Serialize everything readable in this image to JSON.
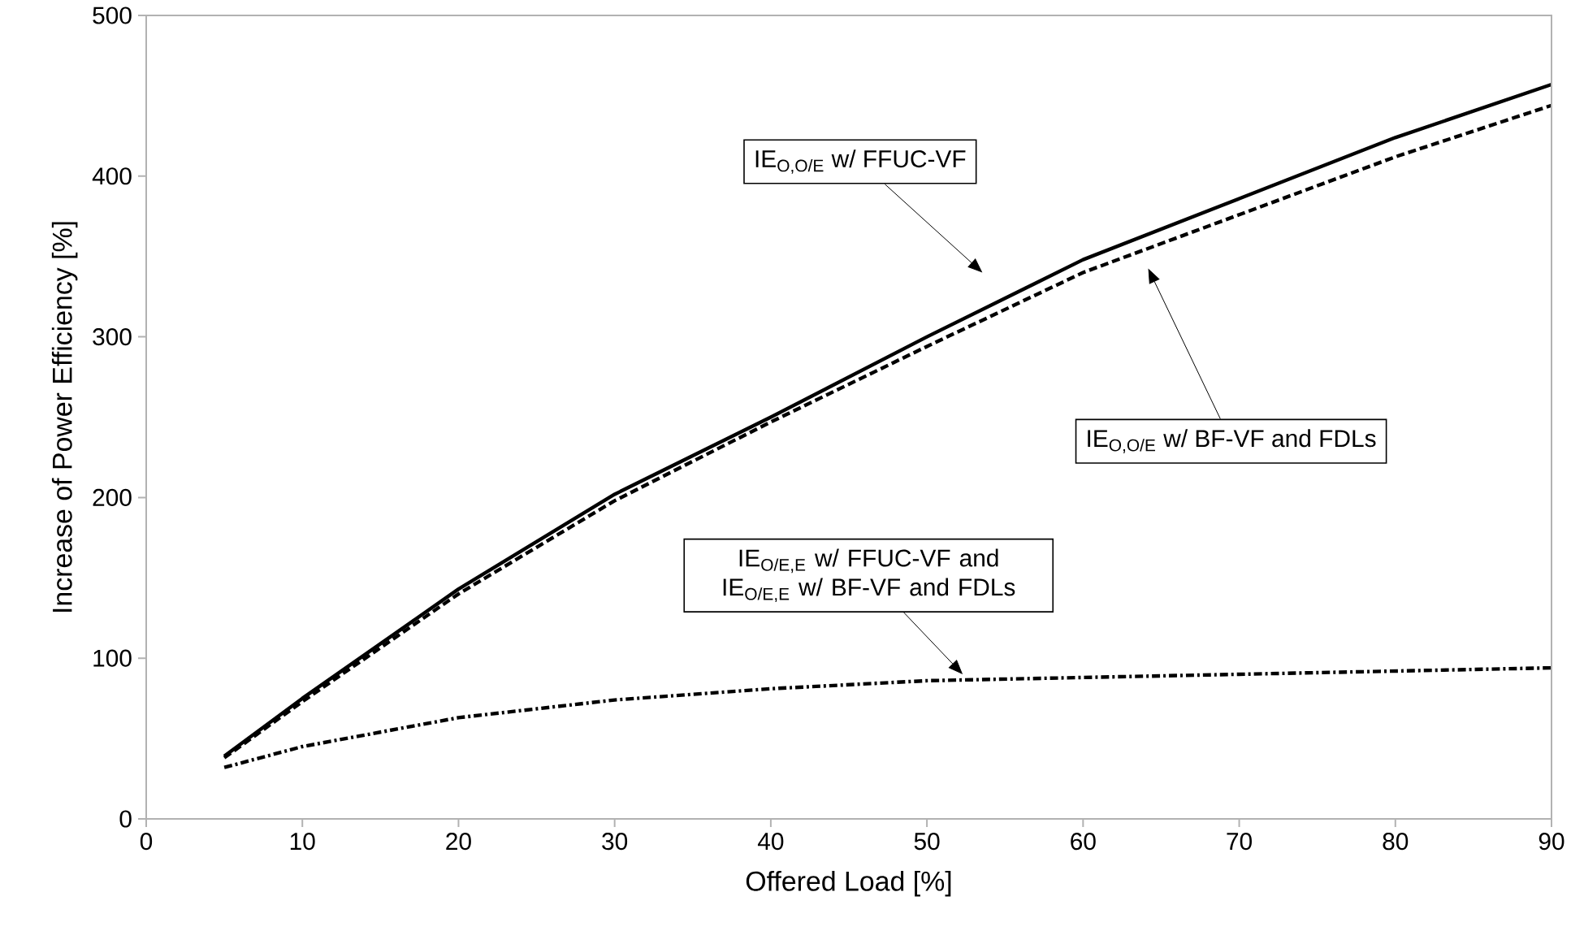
{
  "chart_data": {
    "type": "line",
    "xlabel": "Offered Load [%]",
    "ylabel": "Increase of Power Efficiency [%]",
    "x": [
      5,
      10,
      20,
      30,
      40,
      50,
      60,
      70,
      80,
      90
    ],
    "series": [
      {
        "color": "#000000",
        "line_style": "solid",
        "values": [
          39,
          75,
          143,
          202,
          250,
          300,
          348,
          386,
          424,
          457
        ]
      },
      {
        "color": "#000000",
        "line_style": "dashed",
        "values": [
          38,
          73,
          140,
          198,
          247,
          294,
          340,
          376,
          412,
          444
        ]
      },
      {
        "color": "#000000",
        "line_style": "dashdot",
        "values": [
          32,
          45,
          63,
          74,
          81,
          86,
          88,
          90,
          92,
          94
        ]
      }
    ],
    "xlim": [
      0,
      90
    ],
    "ylim": [
      0,
      500
    ],
    "xticks": [
      0,
      10,
      20,
      30,
      40,
      50,
      60,
      70,
      80,
      90
    ],
    "yticks": [
      0,
      100,
      200,
      300,
      400,
      500
    ],
    "grid": false,
    "annotations": [
      "IE$_{O,O/E}$ w/ FFUC-VF",
      "IE$_{O,O/E}$ w/ BF-VF and FDLs",
      "IE$_{O/E,E}$ w/ FFUC-VF and IE$_{O/E,E}$ w/ BF-VF and FDLs"
    ]
  }
}
